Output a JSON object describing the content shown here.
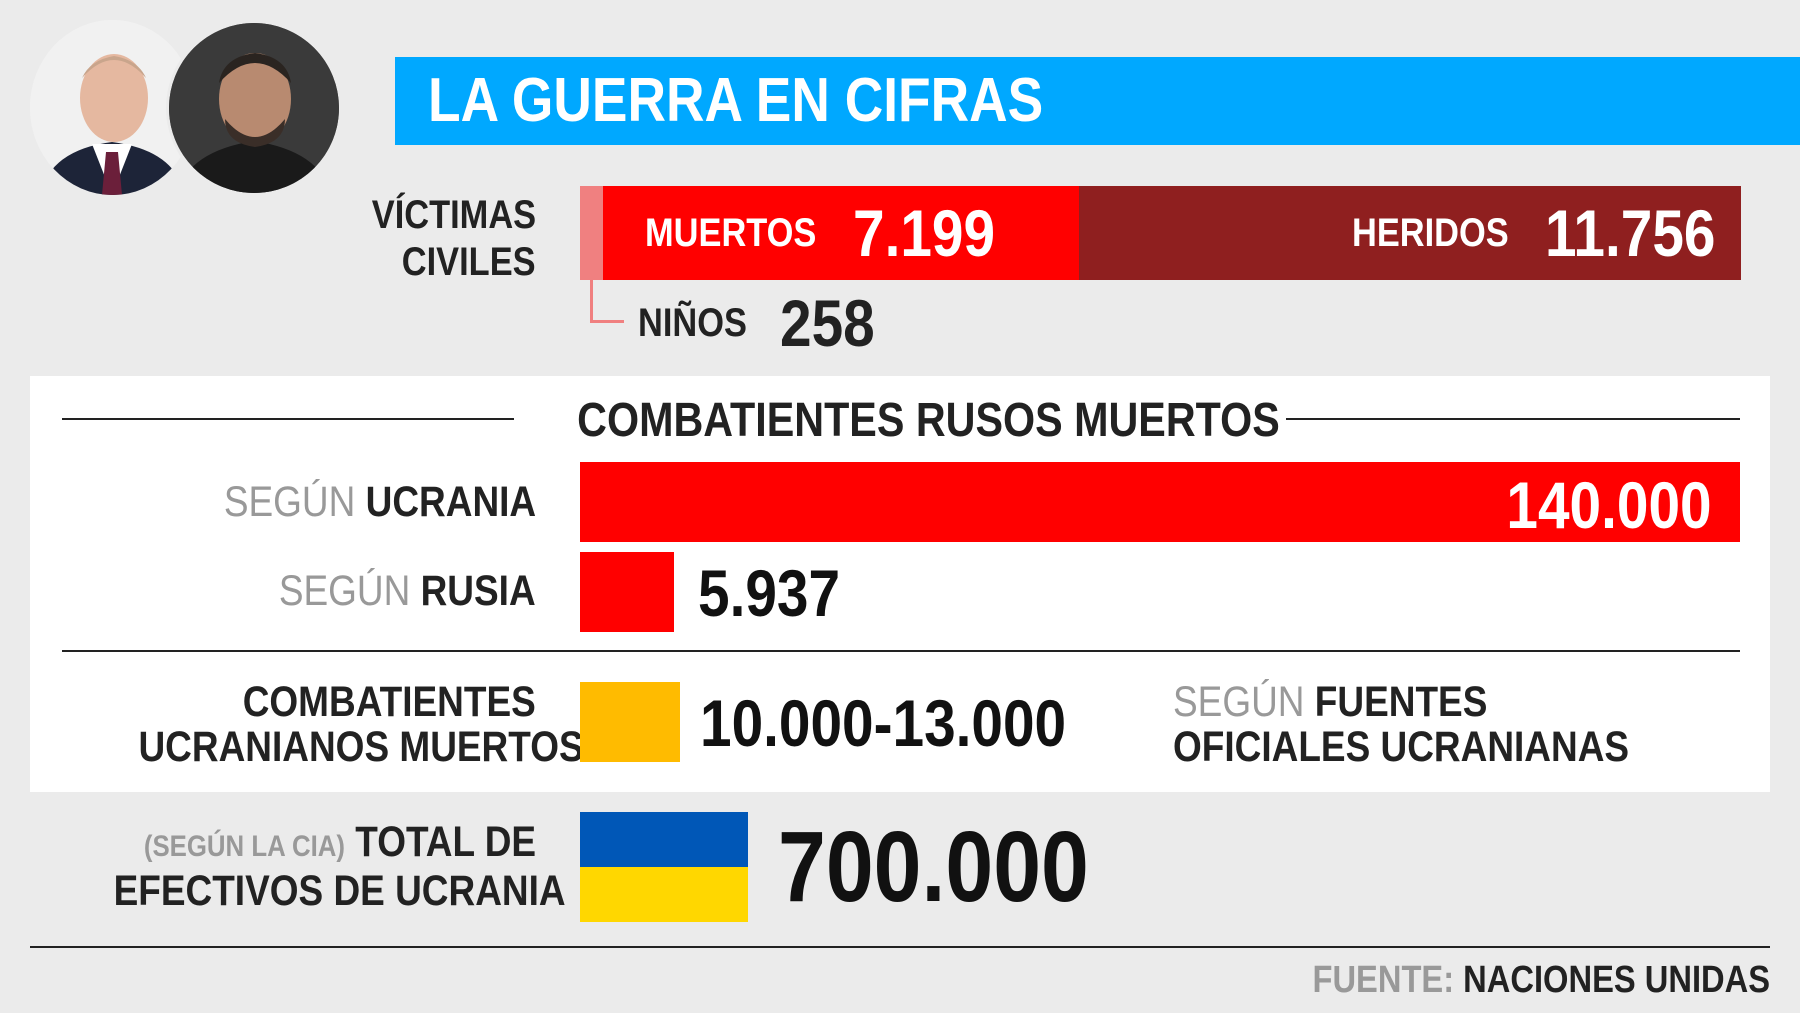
{
  "header": {
    "title": "LA GUERRA EN CIFRAS"
  },
  "colors": {
    "title_bg": "#00a8ff",
    "muertos": "#ff0000",
    "heridos": "#8f1f1f",
    "ninos": "#f08080",
    "ucranianos": "#ffbb00",
    "flag_blue": "#0057b7",
    "flag_yellow": "#ffd700"
  },
  "civiles": {
    "label_line1": "VÍCTIMAS",
    "label_line2": "CIVILES",
    "muertos_label": "MUERTOS",
    "muertos_value": "7.199",
    "heridos_label": "HERIDOS",
    "heridos_value": "11.756",
    "ninos_label": "NIÑOS",
    "ninos_value": "258"
  },
  "rusos": {
    "title": "COMBATIENTES RUSOS MUERTOS",
    "ucrania_prefix": "SEGÚN",
    "ucrania_name": "UCRANIA",
    "ucrania_value": "140.000",
    "rusia_prefix": "SEGÚN",
    "rusia_name": "RUSIA",
    "rusia_value": "5.937"
  },
  "ucranianos": {
    "label_line1": "COMBATIENTES",
    "label_line2": "UCRANIANOS MUERTOS",
    "value": "10.000-13.000",
    "source_prefix": "SEGÚN",
    "source_line1": "FUENTES",
    "source_line2": "OFICIALES UCRANIANAS"
  },
  "efectivos": {
    "prefix": "(SEGÚN LA CIA)",
    "label_line1": "TOTAL DE",
    "label_line2": "EFECTIVOS DE UCRANIA",
    "value": "700.000"
  },
  "footer": {
    "prefix": "FUENTE:",
    "source": "NACIONES UNIDAS"
  },
  "chart_data": [
    {
      "type": "bar",
      "title": "VÍCTIMAS CIVILES",
      "stacked": true,
      "categories": [
        "VÍCTIMAS CIVILES"
      ],
      "series": [
        {
          "name": "NIÑOS",
          "values": [
            258
          ]
        },
        {
          "name": "MUERTOS",
          "values": [
            7199
          ]
        },
        {
          "name": "HERIDOS",
          "values": [
            11756
          ]
        }
      ]
    },
    {
      "type": "bar",
      "title": "COMBATIENTES RUSOS MUERTOS",
      "orientation": "horizontal",
      "categories": [
        "SEGÚN UCRANIA",
        "SEGÚN RUSIA"
      ],
      "values": [
        140000,
        5937
      ]
    }
  ]
}
